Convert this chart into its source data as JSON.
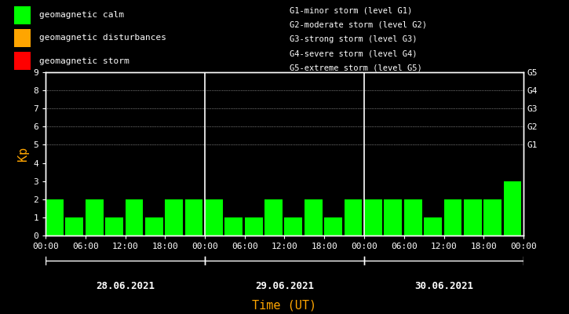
{
  "background_color": "#000000",
  "plot_bg_color": "#000000",
  "bar_color_calm": "#00ff00",
  "bar_color_disturbance": "#ffa500",
  "bar_color_storm": "#ff0000",
  "text_color": "#ffffff",
  "ylabel": "Kp",
  "xlabel": "Time (UT)",
  "ylabel_color": "#ffa500",
  "xlabel_color": "#ffa500",
  "ylim": [
    0,
    9
  ],
  "yticks": [
    0,
    1,
    2,
    3,
    4,
    5,
    6,
    7,
    8,
    9
  ],
  "days": [
    "28.06.2021",
    "29.06.2021",
    "30.06.2021"
  ],
  "bars_per_day": 8,
  "interval_hours": 3,
  "kp_values": [
    2,
    1,
    2,
    1,
    2,
    1,
    2,
    2,
    2,
    1,
    1,
    2,
    1,
    2,
    1,
    2,
    2,
    2,
    2,
    1,
    2,
    2,
    2,
    3
  ],
  "legend_items": [
    {
      "label": "geomagnetic calm",
      "color": "#00ff00"
    },
    {
      "label": "geomagnetic disturbances",
      "color": "#ffa500"
    },
    {
      "label": "geomagnetic storm",
      "color": "#ff0000"
    }
  ],
  "storm_levels": [
    "G1-minor storm (level G1)",
    "G2-moderate storm (level G2)",
    "G3-strong storm (level G3)",
    "G4-severe storm (level G4)",
    "G5-extreme storm (level G5)"
  ],
  "tick_label_color": "#ffffff",
  "spine_color": "#ffffff",
  "font_family": "monospace"
}
